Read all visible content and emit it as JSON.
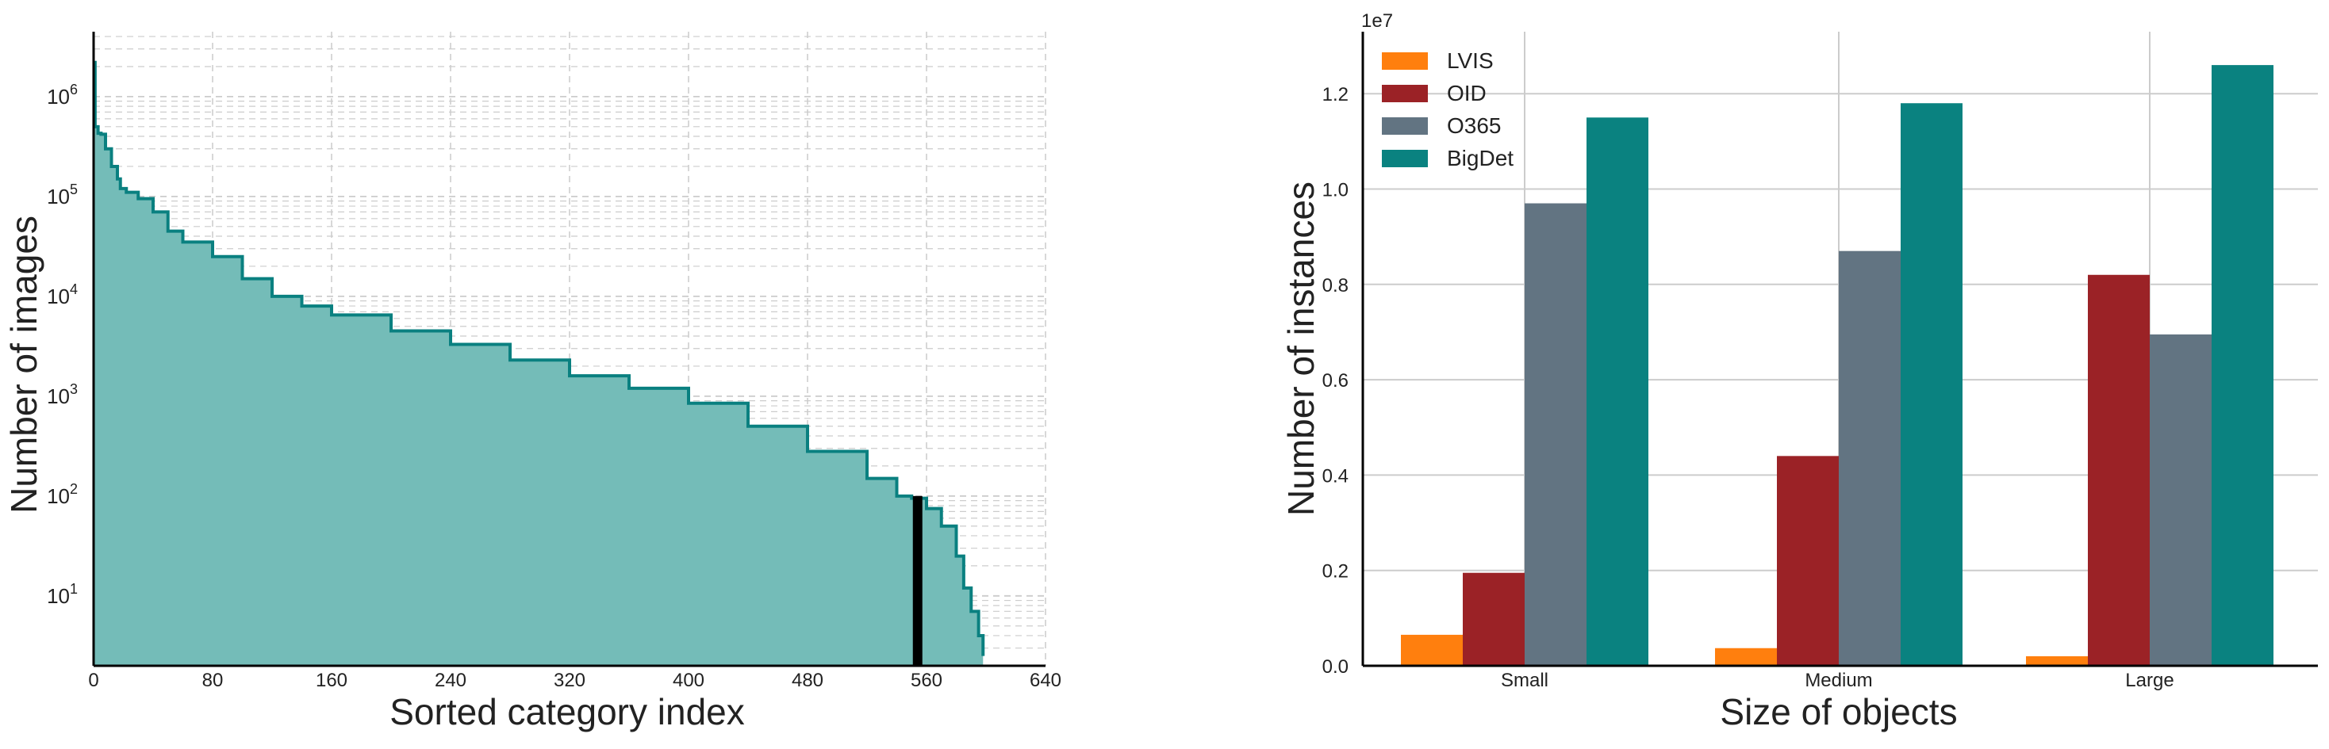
{
  "chart_data": [
    {
      "type": "area",
      "xlabel": "Sorted category index",
      "ylabel": "Number of images",
      "xlim": [
        0,
        640
      ],
      "ylim_log10": [
        0.3,
        6.65
      ],
      "yscale": "log",
      "x_ticks": [
        "0",
        "80",
        "160",
        "240",
        "320",
        "400",
        "480",
        "560",
        "640"
      ],
      "y_ticks": [
        {
          "base": "10",
          "exp": "1"
        },
        {
          "base": "10",
          "exp": "2"
        },
        {
          "base": "10",
          "exp": "3"
        },
        {
          "base": "10",
          "exp": "4"
        },
        {
          "base": "10",
          "exp": "5"
        },
        {
          "base": "10",
          "exp": "6"
        }
      ],
      "grid": true,
      "series": [
        {
          "x": [
            0,
            1,
            3,
            5,
            8,
            12,
            16,
            18,
            22,
            30,
            40,
            50,
            60,
            80,
            100,
            120,
            140,
            160,
            200,
            240,
            280,
            320,
            360,
            400,
            440,
            480,
            520,
            540,
            550,
            560,
            570,
            580,
            585,
            590,
            595,
            598
          ],
          "y": [
            2200000,
            500000,
            430000,
            420000,
            300000,
            200000,
            150000,
            120000,
            110000,
            95000,
            70000,
            45000,
            35000,
            25000,
            15000,
            10000,
            8000,
            6500,
            4500,
            3300,
            2300,
            1600,
            1200,
            850,
            500,
            280,
            150,
            100,
            95,
            75,
            50,
            25,
            12,
            7,
            4,
            2.5
          ]
        }
      ],
      "colors": {
        "fill": "#74bcb8",
        "line": "#0a8080",
        "marker": "#000000"
      },
      "marker_line": {
        "x": 554,
        "y_from": 2.2,
        "y_to": 100
      }
    },
    {
      "type": "bar",
      "xlabel": "Size of objects",
      "ylabel": "Number of instances",
      "offset_label": "1e7",
      "categories": [
        "Small",
        "Medium",
        "Large"
      ],
      "ylim": [
        0,
        1.33
      ],
      "y_ticks": [
        "0.0",
        "0.2",
        "0.4",
        "0.6",
        "0.8",
        "1.0",
        "1.2"
      ],
      "legend_position": "top-left",
      "grid": true,
      "series": [
        {
          "name": "LVIS",
          "values": [
            0.065,
            0.037,
            0.02
          ],
          "color": "#ff7f0e"
        },
        {
          "name": "OID",
          "values": [
            0.195,
            0.44,
            0.82
          ],
          "color": "#9b2226"
        },
        {
          "name": "O365",
          "values": [
            0.97,
            0.87,
            0.695
          ],
          "color": "#627482"
        },
        {
          "name": "BigDet",
          "values": [
            1.15,
            1.18,
            1.26
          ],
          "color": "#0a8280"
        }
      ]
    }
  ]
}
